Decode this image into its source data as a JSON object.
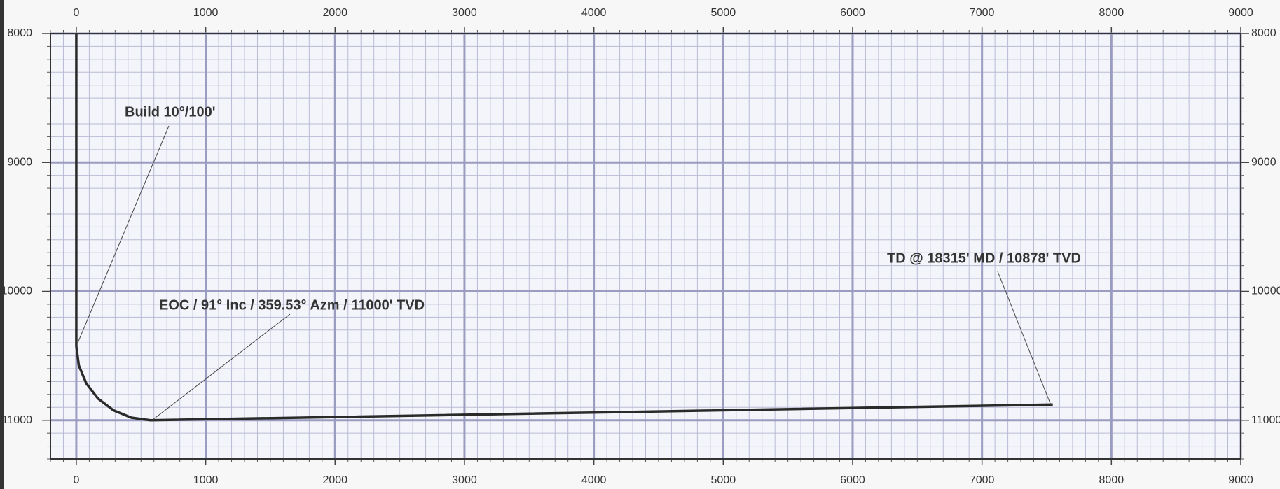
{
  "chart_data": {
    "type": "line",
    "x": [
      0,
      0,
      19.5,
      77,
      168,
      287,
      425,
      573,
      7547
    ],
    "series": [
      {
        "color": "#2a2a2a",
        "values": [
          8000,
          10427,
          10575,
          10714,
          10832,
          10923,
          10980,
          11000,
          10878
        ]
      }
    ],
    "xlim": [
      -200,
      9000
    ],
    "ylim": [
      8000,
      11300
    ],
    "y_inverted": true,
    "xticks": [
      0,
      1000,
      2000,
      3000,
      4000,
      5000,
      6000,
      7000,
      8000,
      9000
    ],
    "yticks": [
      8000,
      9000,
      10000,
      11000
    ],
    "grid": true,
    "minor_grid_step": 100,
    "annotations": [
      "Build 10°/100'",
      "EOC / 91° Inc / 359.53° Azm / 11000' TVD",
      "TD @ 18315' MD / 10878' TVD"
    ]
  }
}
